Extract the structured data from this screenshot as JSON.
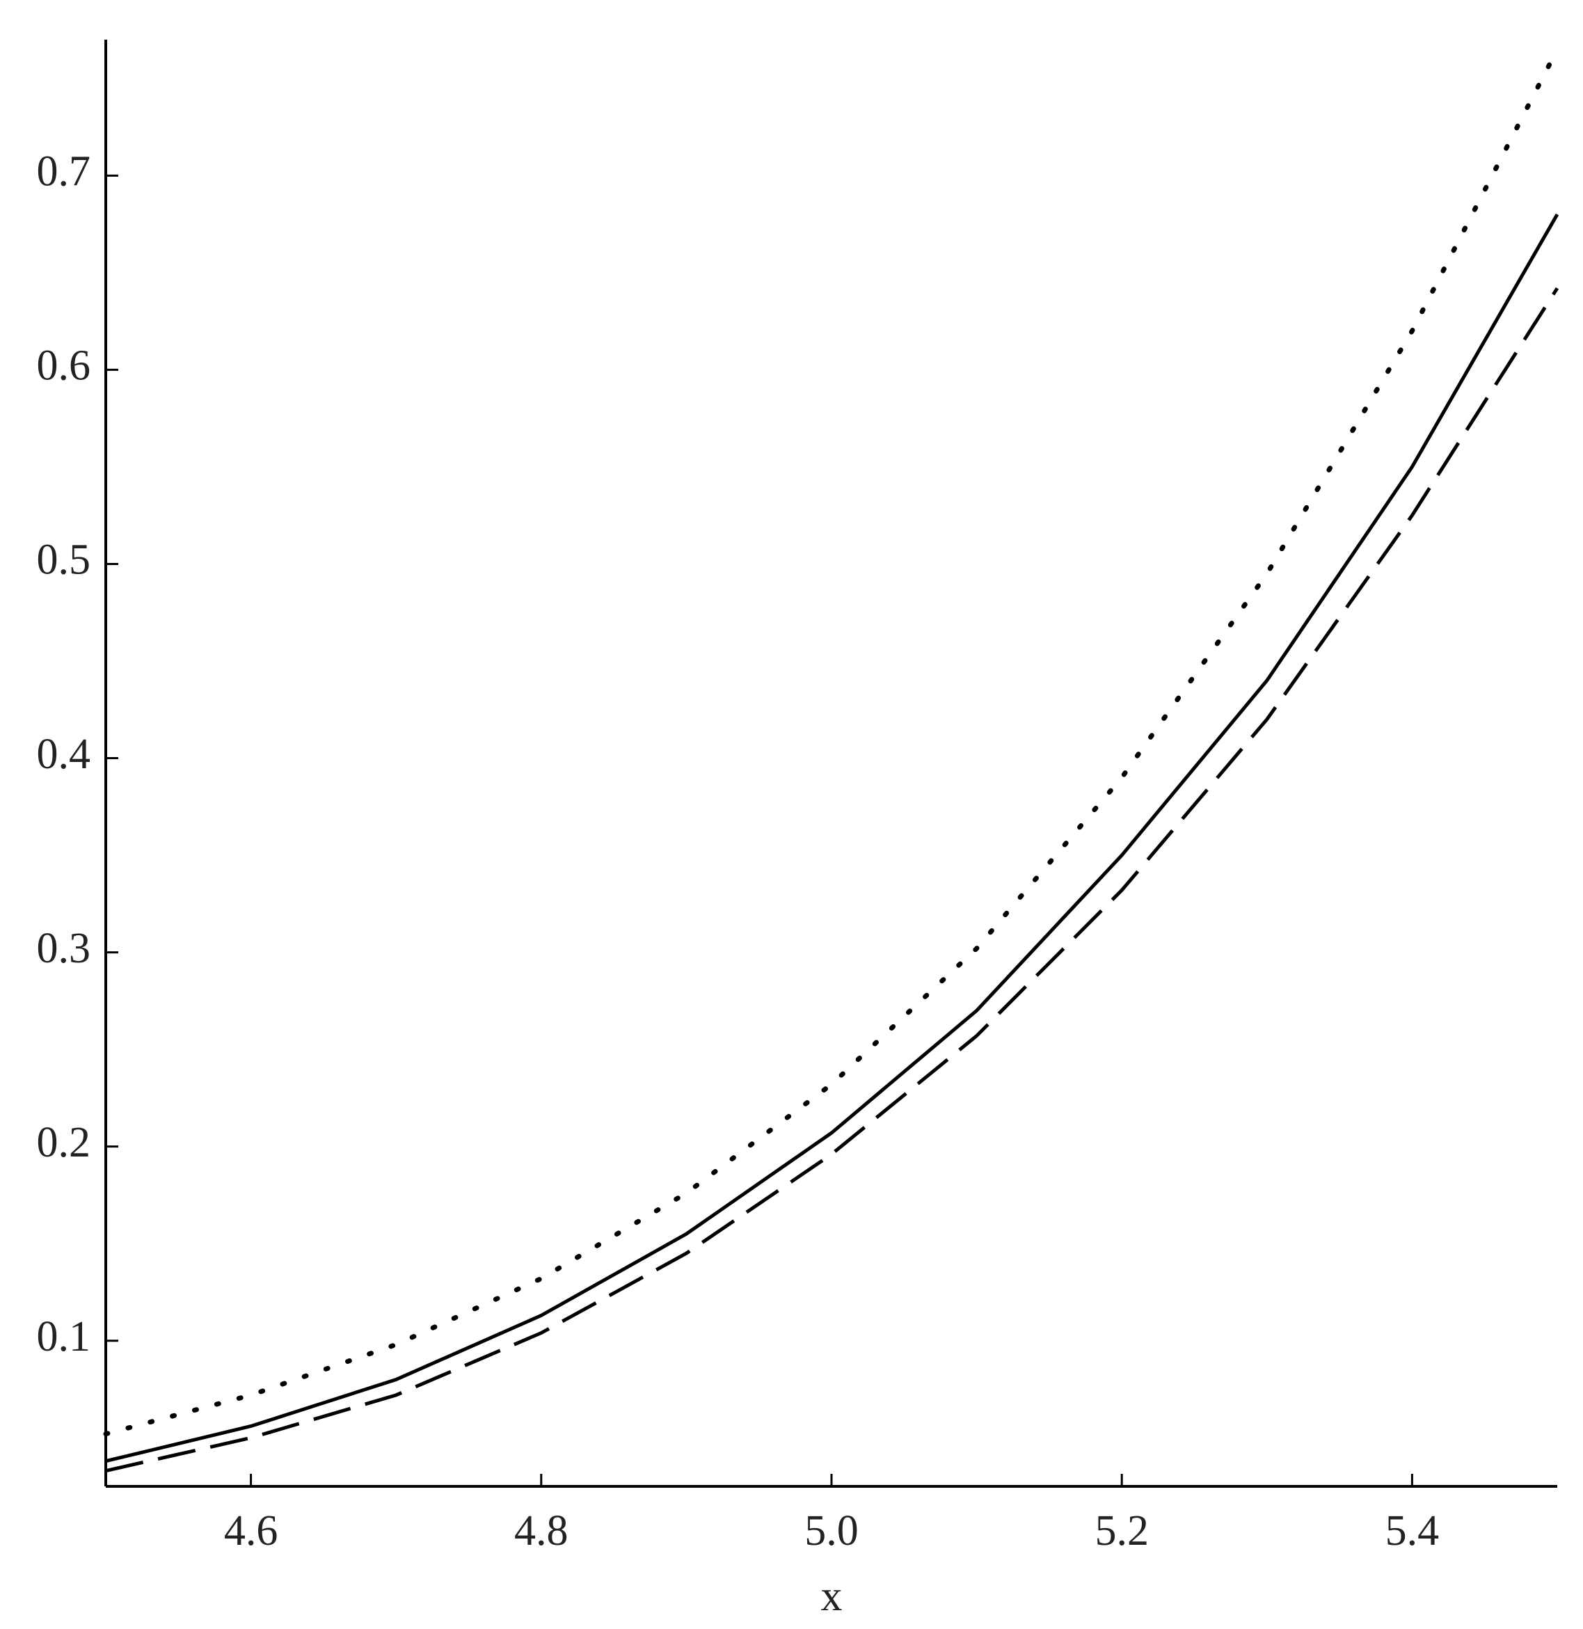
{
  "chart_data": {
    "type": "line",
    "xlabel": "x",
    "x": [
      4.5,
      4.6,
      4.7,
      4.8,
      4.9,
      5.0,
      5.1,
      5.2,
      5.3,
      5.4,
      5.5
    ],
    "series": [
      {
        "color": "#000000",
        "style": "solid",
        "values": [
          0.038,
          0.056,
          0.08,
          0.113,
          0.155,
          0.207,
          0.27,
          0.35,
          0.44,
          0.55,
          0.68
        ]
      },
      {
        "color": "#000000",
        "style": "dotted",
        "values": [
          0.052,
          0.072,
          0.098,
          0.132,
          0.176,
          0.232,
          0.302,
          0.39,
          0.495,
          0.62,
          0.765
        ]
      },
      {
        "color": "#000000",
        "style": "dashed",
        "values": [
          0.033,
          0.05,
          0.072,
          0.104,
          0.145,
          0.196,
          0.257,
          0.332,
          0.42,
          0.525,
          0.642
        ]
      }
    ],
    "xlim": [
      4.5,
      5.5
    ],
    "ylim": [
      0.025,
      0.77
    ],
    "xticks": [
      4.6,
      4.8,
      {
        "value": 5,
        "label": "5.0"
      },
      5.2,
      5.4
    ],
    "yticks": [
      0.1,
      0.2,
      0.3,
      0.4,
      0.5,
      0.6,
      0.7
    ],
    "grid": false
  }
}
